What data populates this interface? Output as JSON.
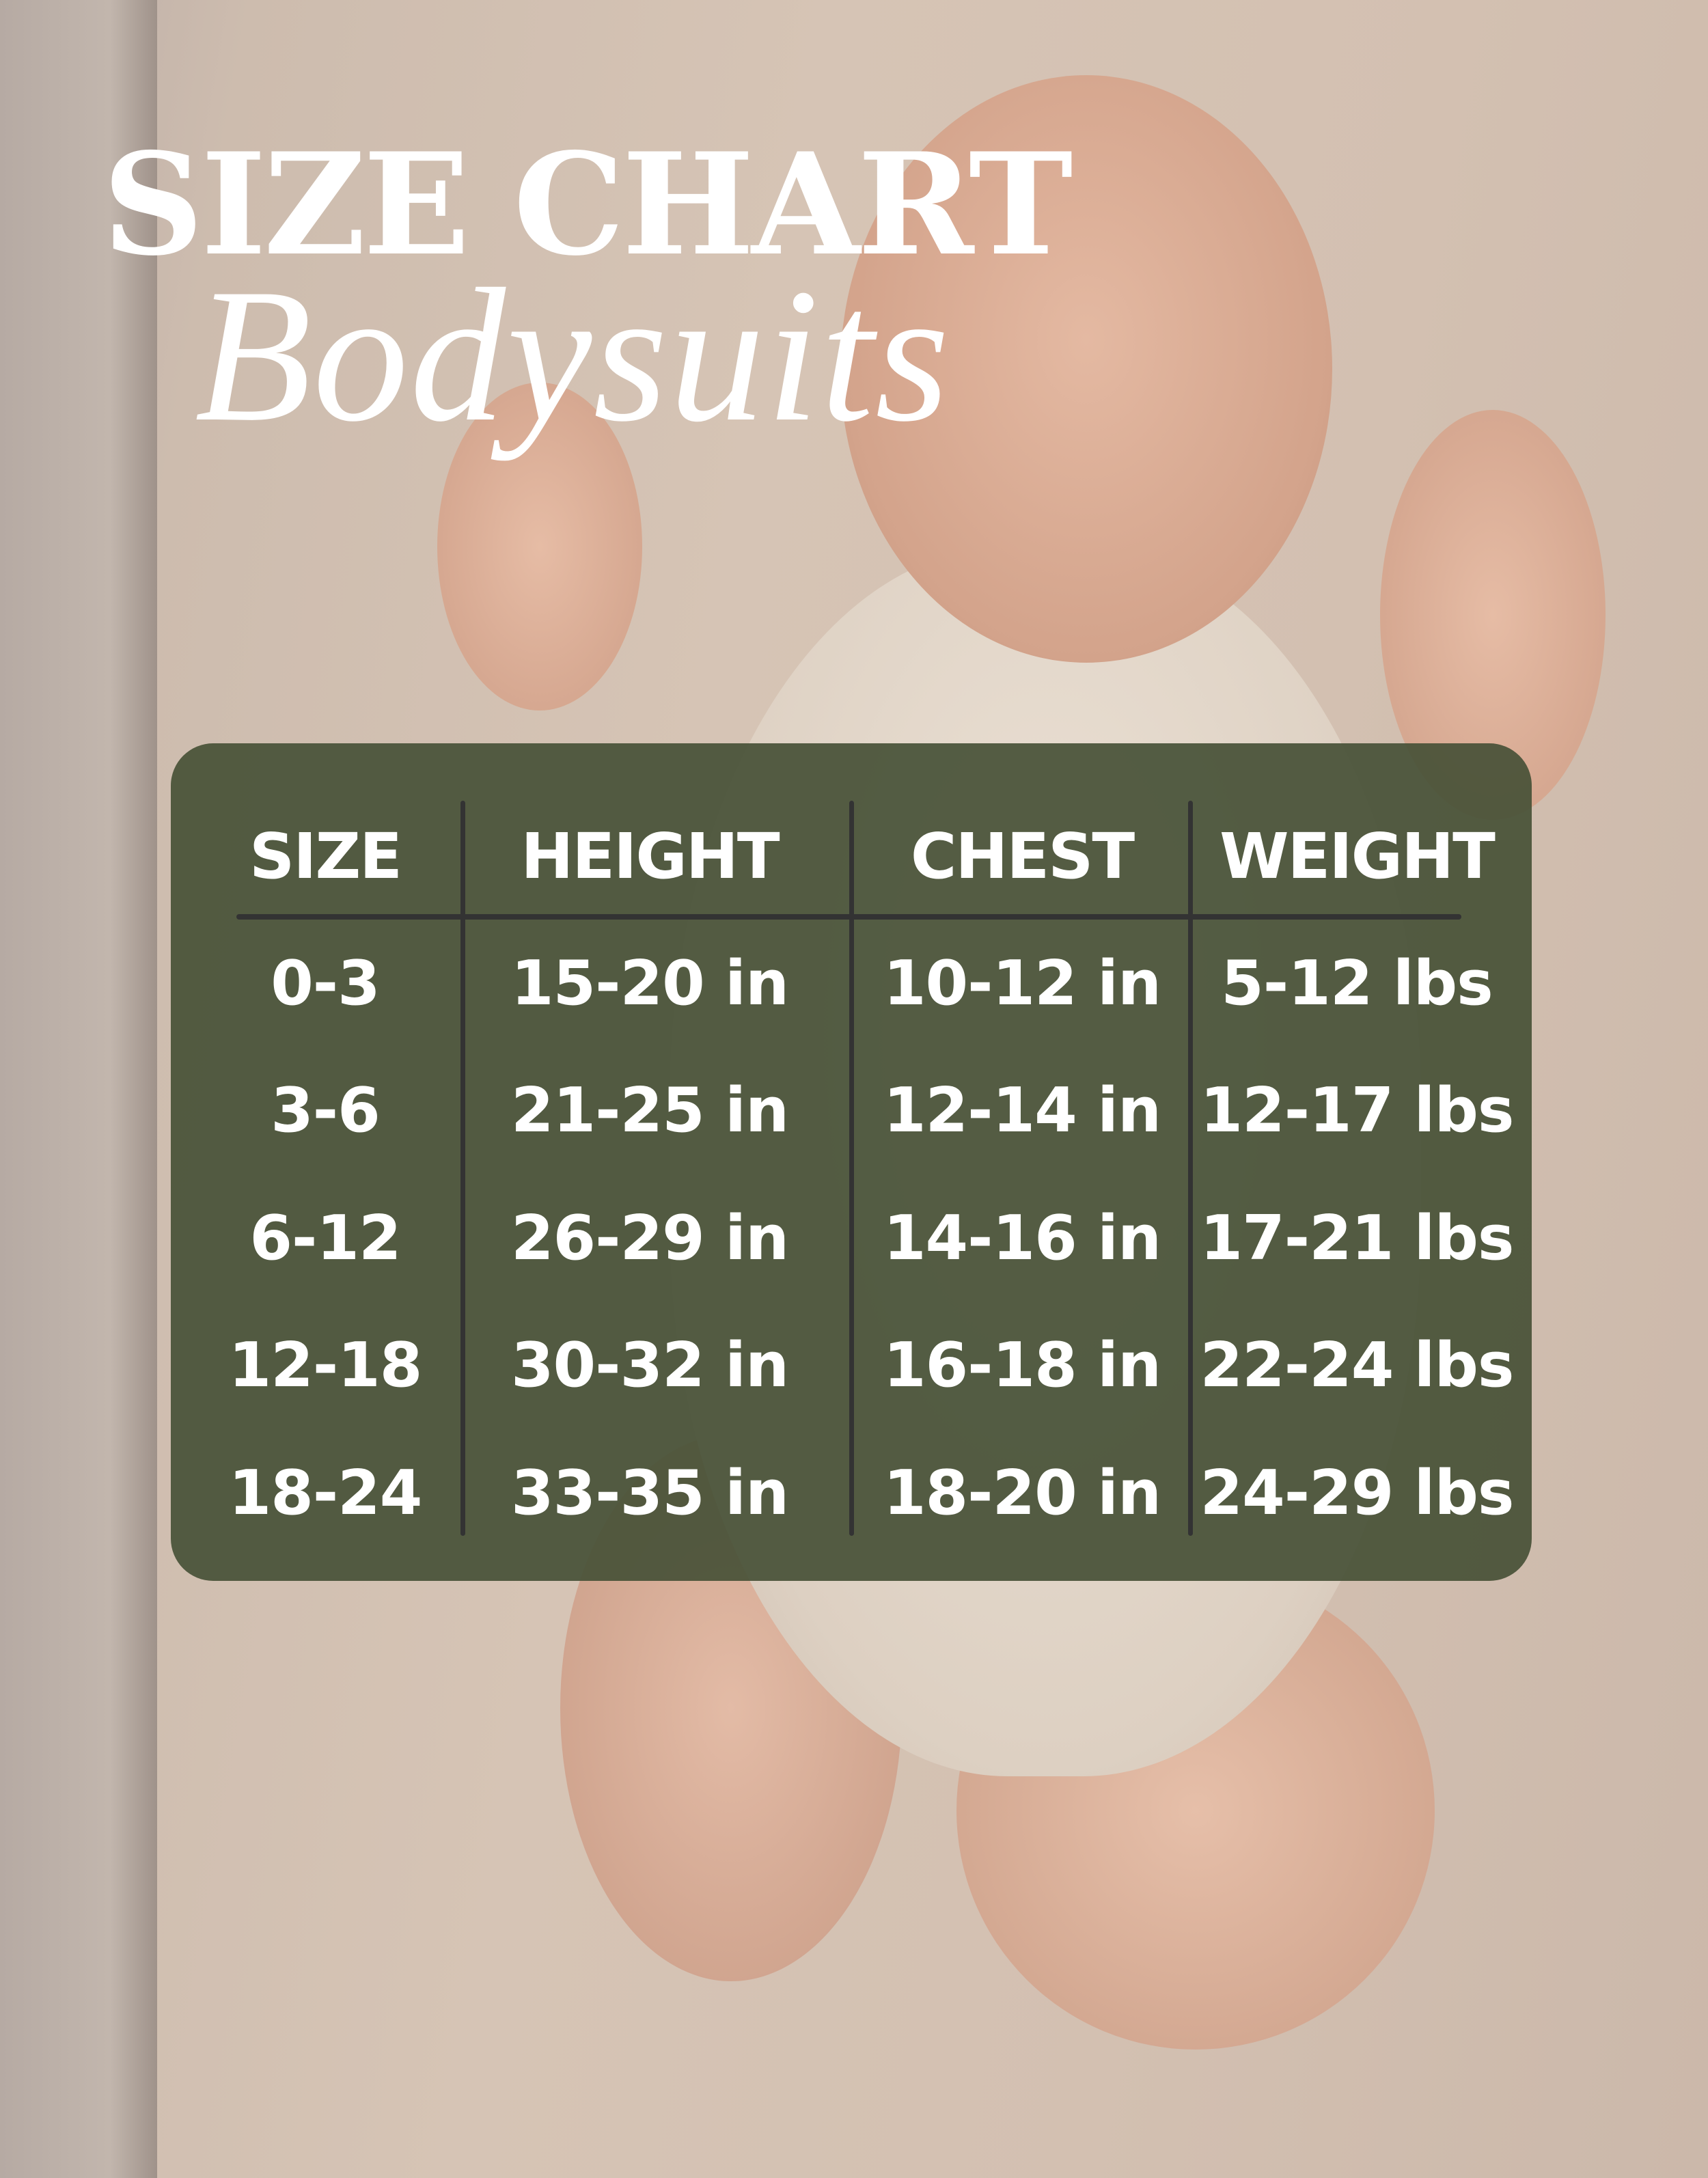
{
  "title": "SIZE CHART",
  "subtitle": "Bodysuits",
  "colors": {
    "panel": "#4f5a40",
    "text": "#ffffff",
    "divider": "#333333"
  },
  "table": {
    "headers": [
      "SIZE",
      "HEIGHT",
      "CHEST",
      "WEIGHT"
    ],
    "rows": [
      [
        "0-3",
        "15-20 in",
        "10-12 in",
        "5-12 lbs"
      ],
      [
        "3-6",
        "21-25 in",
        "12-14 in",
        "12-17 lbs"
      ],
      [
        "6-12",
        "26-29 in",
        "14-16 in",
        "17-21 lbs"
      ],
      [
        "12-18",
        "30-32 in",
        "16-18 in",
        "22-24 lbs"
      ],
      [
        "18-24",
        "33-35 in",
        "18-20 in",
        "24-29 lbs"
      ]
    ]
  }
}
